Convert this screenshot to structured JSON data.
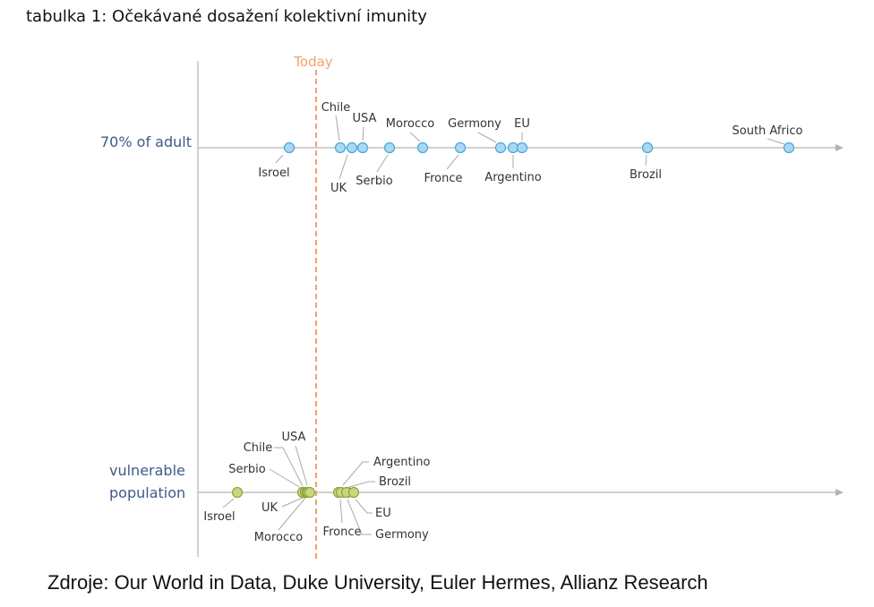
{
  "caption": "tabulka 1: Očekávané dosažení kolektivní imunity",
  "source": "Zdroje: Our World in Data, Duke University, Euler Hermes, Allianz Research",
  "chart_data": {
    "type": "scatter",
    "title": "",
    "today_label": "Today",
    "colors": {
      "today_line": "#f4a06a",
      "axis": "#b4b4b4",
      "leader": "#aaaaaa",
      "row_label": "#3f5a8a",
      "adult_fill": "#a9d8f2",
      "adult_stroke": "#4aa6d8",
      "vulnerable_fill": "#c8d77c",
      "vulnerable_stroke": "#8fa33f"
    },
    "series": [
      {
        "name": "70% of adult",
        "label_lines": [
          "70% of adult"
        ],
        "points": [
          {
            "label": "Isroel"
          },
          {
            "label": "Chile"
          },
          {
            "label": "UK"
          },
          {
            "label": "USA"
          },
          {
            "label": "Serbio"
          },
          {
            "label": "Morocco"
          },
          {
            "label": "Fronce"
          },
          {
            "label": "Germony"
          },
          {
            "label": "Argentino"
          },
          {
            "label": "EU"
          },
          {
            "label": "Brozil"
          },
          {
            "label": "South Africo"
          }
        ]
      },
      {
        "name": "vulnerable population",
        "label_lines": [
          "vulnerable",
          "population"
        ],
        "points": [
          {
            "label": "Isroel"
          },
          {
            "label": "Serbio"
          },
          {
            "label": "Chile"
          },
          {
            "label": "Morocco"
          },
          {
            "label": "UK"
          },
          {
            "label": "USA"
          },
          {
            "label": "Fronce"
          },
          {
            "label": "Germony"
          },
          {
            "label": "Argentino"
          },
          {
            "label": "Brozil"
          },
          {
            "label": "EU"
          }
        ]
      }
    ]
  }
}
